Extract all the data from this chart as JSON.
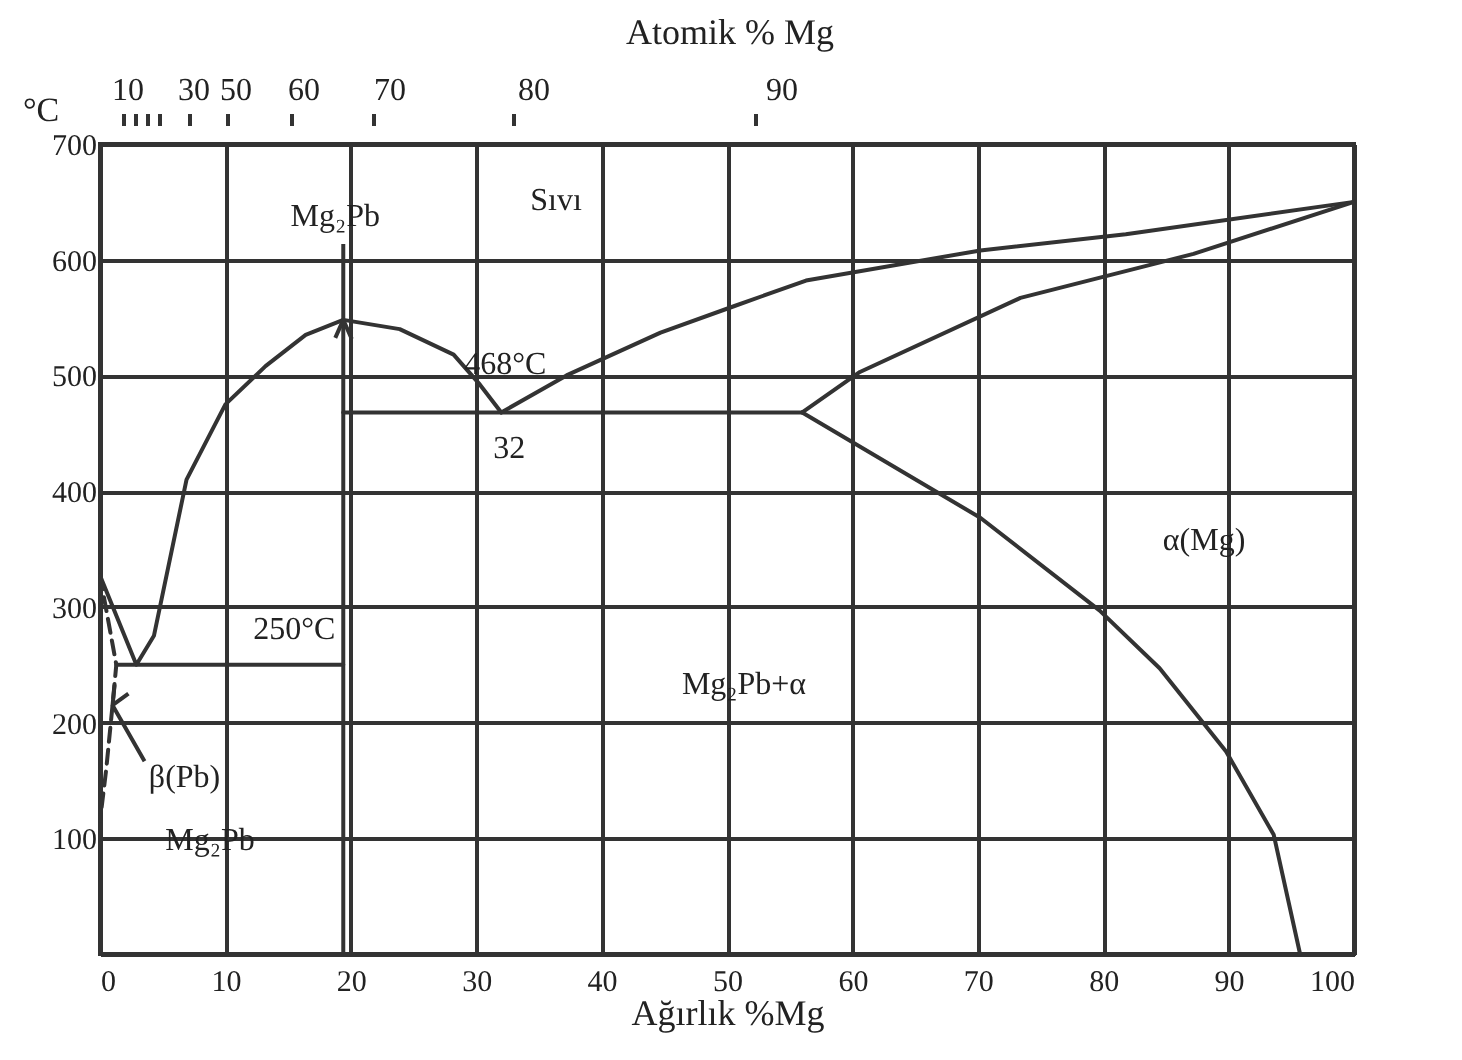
{
  "chart_data": {
    "type": "line",
    "xlabel": "Ağırlık %Mg",
    "ylabel": "°C",
    "x2label": "Atomik % Mg",
    "xlim": [
      0,
      100
    ],
    "xticks": [
      0,
      10,
      20,
      30,
      40,
      50,
      60,
      70,
      80,
      90,
      100
    ],
    "ylim": [
      0,
      700
    ],
    "yticks": [
      {
        "value": 0,
        "label": null
      },
      100,
      200,
      300,
      400,
      500,
      600,
      700
    ],
    "grid": true,
    "series": [
      {
        "color": "#333333",
        "x": [
          0,
          2.9,
          4.3,
          6.9,
          10,
          13.2,
          16.4,
          19.4,
          23.9,
          28.2,
          30.3,
          32
        ],
        "values": [
          327,
          250,
          275,
          410,
          475,
          508,
          535,
          548,
          540,
          518,
          492,
          468
        ]
      },
      {
        "color": "#333333",
        "x": [
          32,
          37.2,
          44.7,
          50.6,
          56.3,
          70.2,
          81.8,
          100
        ],
        "values": [
          468,
          500,
          537,
          560,
          582,
          608,
          622,
          650
        ]
      },
      {
        "color": "#333333",
        "x": [
          56,
          60.6,
          73.4,
          87.2,
          100
        ],
        "values": [
          468,
          503,
          567,
          605,
          650
        ]
      },
      {
        "color": "#333333",
        "x": [
          56,
          70.2,
          79.7,
          84.5,
          89.8,
          93.6,
          95.7
        ],
        "values": [
          468,
          377,
          297,
          247,
          175,
          103,
          0
        ]
      },
      {
        "color": "#333333",
        "x": [
          19.4,
          56
        ],
        "values": [
          468,
          468
        ]
      },
      {
        "color": "#333333",
        "x": [
          19.4,
          19.4
        ],
        "values": [
          0,
          548
        ]
      },
      {
        "color": "#333333",
        "x": [
          1.3,
          19.4
        ],
        "values": [
          250,
          250
        ]
      },
      {
        "color": "#333333",
        "line_style": "dashed",
        "x": [
          0,
          1.3,
          1.0,
          0.5,
          0
        ],
        "values": [
          327,
          250,
          215,
          160,
          115
        ]
      }
    ],
    "annotations": [
      {
        "text": "Mg₂Pb",
        "x": 19.4,
        "y": 548
      },
      "Sıvı",
      {
        "text": "468°C",
        "x": 32,
        "y": 468
      },
      {
        "text": "32",
        "x": 32,
        "y": 468
      },
      {
        "text": "250°C",
        "x": 15.5,
        "y": 250
      },
      {
        "text": "β(Pb)",
        "x": 1.0,
        "y": 215
      },
      "Mg₂Pb",
      "Mg₂Pb+α",
      "α(Mg)",
      "10",
      "30",
      "50",
      "60",
      "70",
      "80",
      "90"
    ]
  }
}
